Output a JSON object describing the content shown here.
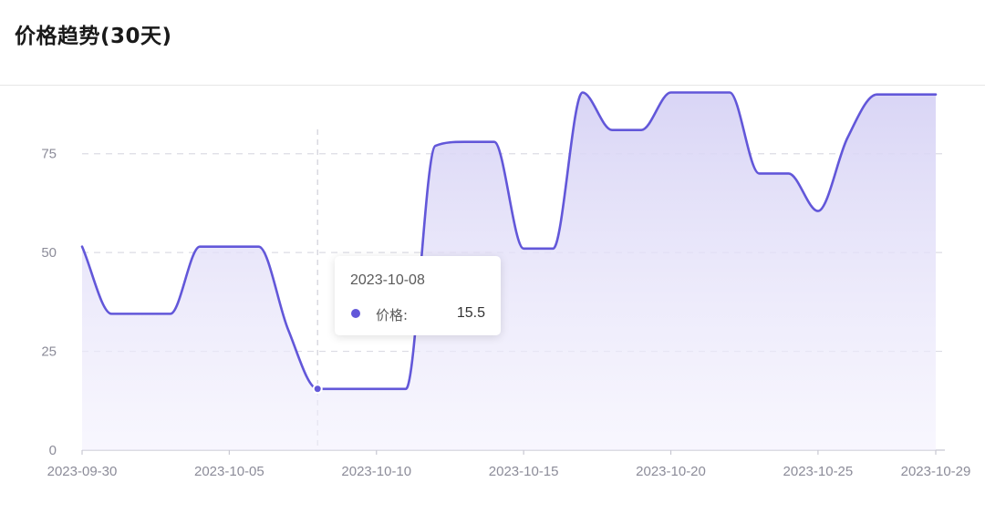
{
  "header": {
    "title": "价格趋势(30天)"
  },
  "colors": {
    "line": "#6257d9",
    "area_top": "#d7d3f5",
    "area_bottom": "#f3f1fd",
    "grid": "#dcdce4",
    "axis": "#c8c8d2",
    "pointer": "#d0d0d8"
  },
  "chart_data": {
    "type": "area",
    "smooth": true,
    "x": [
      "2023-09-30",
      "2023-10-01",
      "2023-10-02",
      "2023-10-03",
      "2023-10-04",
      "2023-10-05",
      "2023-10-06",
      "2023-10-07",
      "2023-10-08",
      "2023-10-09",
      "2023-10-10",
      "2023-10-11",
      "2023-10-12",
      "2023-10-13",
      "2023-10-14",
      "2023-10-15",
      "2023-10-16",
      "2023-10-17",
      "2023-10-18",
      "2023-10-19",
      "2023-10-20",
      "2023-10-21",
      "2023-10-22",
      "2023-10-23",
      "2023-10-24",
      "2023-10-25",
      "2023-10-26",
      "2023-10-27",
      "2023-10-28",
      "2023-10-29"
    ],
    "series": [
      {
        "name": "价格",
        "values": [
          51.5,
          34.5,
          34.5,
          34.5,
          51.5,
          51.5,
          51.5,
          30.5,
          15.5,
          15.5,
          15.5,
          15.5,
          77.0,
          78.0,
          78.0,
          51.0,
          51.0,
          90.5,
          81.0,
          81.0,
          90.5,
          90.5,
          90.5,
          70.0,
          70.0,
          60.5,
          79.0,
          90.0,
          90.0,
          90.0
        ]
      }
    ],
    "x_tick_labels": [
      "2023-09-30",
      "2023-10-05",
      "2023-10-10",
      "2023-10-15",
      "2023-10-20",
      "2023-10-25",
      "2023-10-29"
    ],
    "y_ticks": [
      0,
      25,
      50,
      75
    ],
    "ylim": [
      0,
      92
    ],
    "grid": true,
    "legend": "none",
    "tooltip": {
      "date": "2023-10-08",
      "series_label": "价格:",
      "value": "15.5"
    }
  }
}
